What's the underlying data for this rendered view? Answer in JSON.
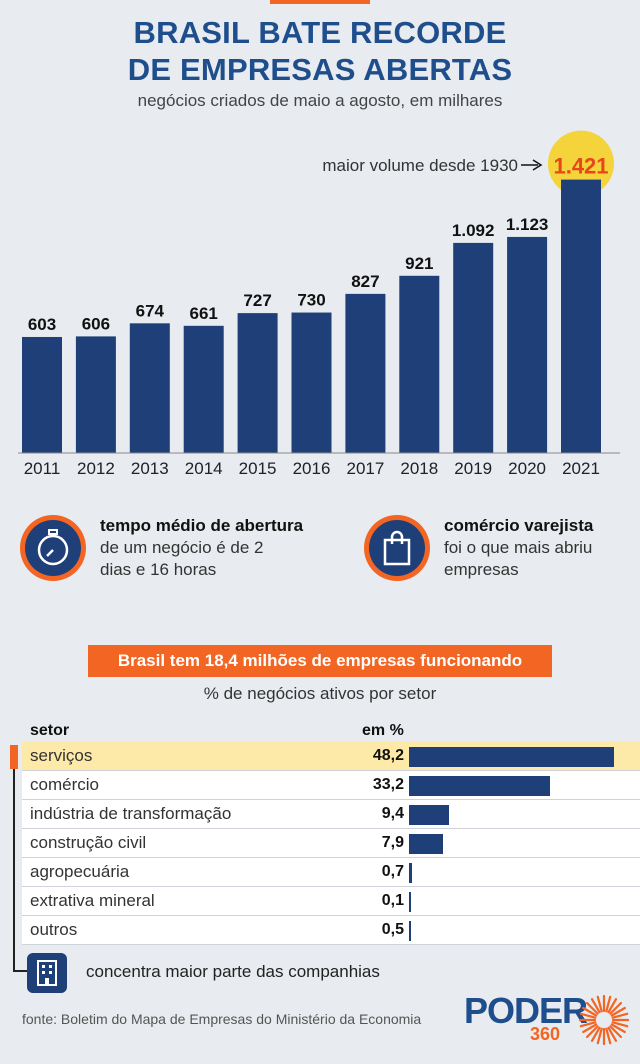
{
  "header": {
    "title_line1": "BRASIL BATE RECORDE",
    "title_line2": "DE EMPRESAS ABERTAS",
    "subtitle": "negócios criados de maio a agosto, em milhares"
  },
  "chart_data": [
    {
      "type": "bar",
      "title": "BRASIL BATE RECORDE DE EMPRESAS ABERTAS",
      "subtitle": "negócios criados de maio a agosto, em milhares",
      "categories": [
        "2011",
        "2012",
        "2013",
        "2014",
        "2015",
        "2016",
        "2017",
        "2018",
        "2019",
        "2020",
        "2021"
      ],
      "values": [
        603,
        606,
        674,
        661,
        727,
        730,
        827,
        921,
        1092,
        1123,
        1421
      ],
      "value_labels": [
        "603",
        "606",
        "674",
        "661",
        "727",
        "730",
        "827",
        "921",
        "1.092",
        "1.123",
        "1.421"
      ],
      "highlight_index": 10,
      "annotation": "maior volume desde 1930",
      "bar_color": "#1f3f78",
      "highlight_color": "#f5d33a",
      "grid": false
    },
    {
      "type": "bar",
      "orientation": "horizontal",
      "title": "Brasil tem 18,4 milhões de empresas funcionando",
      "subtitle": "% de negócios ativos por setor",
      "column_headers": [
        "setor",
        "em %"
      ],
      "categories": [
        "serviços",
        "comércio",
        "indústria de transformação",
        "construção civil",
        "agropecuária",
        "extrativa mineral",
        "outros"
      ],
      "values": [
        48.2,
        33.2,
        9.4,
        7.9,
        0.7,
        0.1,
        0.5
      ],
      "value_labels": [
        "48,2",
        "33,2",
        "9,4",
        "7,9",
        "0,7",
        "0,1",
        "0,5"
      ],
      "highlight_index": 0,
      "bar_color": "#1f3f78"
    }
  ],
  "info": {
    "time": {
      "bold": "tempo médio de abertura",
      "line1": "de um negócio é de 2",
      "line2": "dias e 16 horas",
      "icon": "stopwatch-icon"
    },
    "retail": {
      "bold": "comércio varejista",
      "line1": "foi o que mais abriu",
      "line2": "empresas",
      "icon": "shopping-bag-icon"
    }
  },
  "sectors": {
    "banner": "Brasil tem 18,4 milhões de empresas funcionando",
    "subtitle": "% de negócios ativos por setor",
    "col_sector": "setor",
    "col_pct": "em %",
    "rows": [
      {
        "name": "serviços",
        "pct": "48,2"
      },
      {
        "name": "comércio",
        "pct": "33,2"
      },
      {
        "name": "indústria de transformação",
        "pct": "9,4"
      },
      {
        "name": "construção civil",
        "pct": "7,9"
      },
      {
        "name": "agropecuária",
        "pct": "0,7"
      },
      {
        "name": "extrativa mineral",
        "pct": "0,1"
      },
      {
        "name": "outros",
        "pct": "0,5"
      }
    ],
    "note": "concentra maior parte das companhias"
  },
  "footer": {
    "source": "fonte: Boletim do Mapa de Empresas do Ministério da Economia",
    "logo_word": "PODER",
    "logo_num": "360"
  },
  "colors": {
    "orange": "#f26522",
    "navy": "#1f3f78",
    "title_blue": "#1f4e8c",
    "highlight": "#f5d33a"
  }
}
